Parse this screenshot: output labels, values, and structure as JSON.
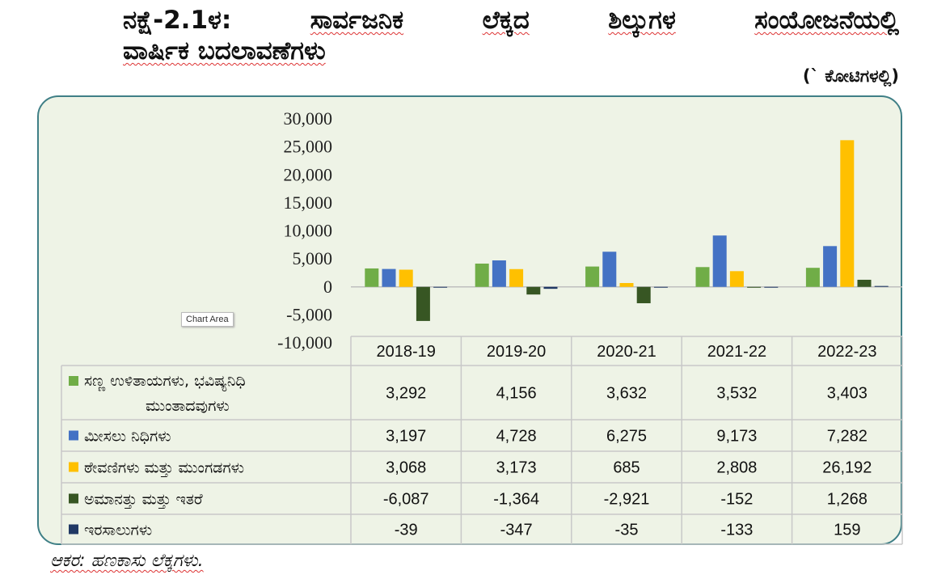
{
  "title": {
    "line1": [
      "ನಕ್ಷೆ-2.1ಳ:",
      "ಸಾರ್ವಜನಿಕ",
      "ಲೆಕ್ಕದ",
      "ಶಿಲ್ಕುಗಳ",
      "ಸಂಯೋಜನೆಯಲ್ಲಿ"
    ],
    "line2": "ವಾರ್ಷಿಕ ಬದಲಾವಣೆಗಳು"
  },
  "unit_label": "(` ಕೋಟಿಗಳಲ್ಲಿ)",
  "tooltip": "Chart Area",
  "source": "ಆಕರ: ಹಣಕಾಸು ಲೆಕ್ಕಗಳು.",
  "chart_data": {
    "type": "bar",
    "categories": [
      "2018-19",
      "2019-20",
      "2020-21",
      "2021-22",
      "2022-23"
    ],
    "series": [
      {
        "name": "ಸಣ್ಣ ಉಳಿತಾಯಗಳು, ಭವಿಷ್ಯನಿಧಿ ಮುಂತಾದವುಗಳು",
        "color": "#70ad47",
        "values": [
          3292,
          4156,
          3632,
          3532,
          3403
        ]
      },
      {
        "name": "ಮೀಸಲು ನಿಧಿಗಳು",
        "color": "#4472c4",
        "values": [
          3197,
          4728,
          6275,
          9173,
          7282
        ]
      },
      {
        "name": "ಠೇವಣಿಗಳು ಮತ್ತು ಮುಂಗಡಗಳು",
        "color": "#ffc000",
        "values": [
          3068,
          3173,
          685,
          2808,
          26192
        ]
      },
      {
        "name": "ಅಮಾನತ್ತು ಮತ್ತು ಇತರೆ",
        "color": "#375623",
        "values": [
          -6087,
          -1364,
          -2921,
          -152,
          1268
        ]
      },
      {
        "name": "ಇರಸಾಲುಗಳು",
        "color": "#203864",
        "values": [
          -39,
          -347,
          -35,
          -133,
          159
        ]
      }
    ],
    "value_display": [
      [
        "3,292",
        "4,156",
        "3,632",
        "3,532",
        "3,403"
      ],
      [
        "3,197",
        "4,728",
        "6,275",
        "9,173",
        "7,282"
      ],
      [
        "3,068",
        "3,173",
        "685",
        "2,808",
        "26,192"
      ],
      [
        "-6,087",
        "-1,364",
        "-2,921",
        "-152",
        "1,268"
      ],
      [
        "-39",
        "-347",
        "-35",
        "-133",
        "159"
      ]
    ],
    "yticks": [
      "30,000",
      "25,000",
      "20,000",
      "15,000",
      "10,000",
      "5,000",
      "0",
      "-5,000",
      "-10,000"
    ],
    "ylim": [
      -10000,
      30000
    ],
    "legend": "data-table",
    "grid": false
  }
}
